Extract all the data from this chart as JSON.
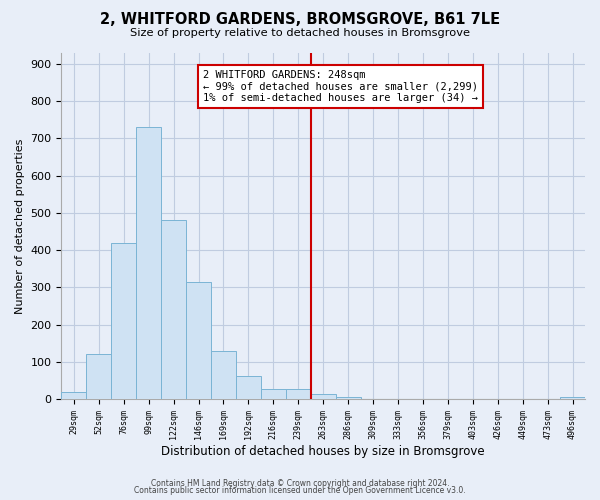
{
  "title": "2, WHITFORD GARDENS, BROMSGROVE, B61 7LE",
  "subtitle": "Size of property relative to detached houses in Bromsgrove",
  "xlabel": "Distribution of detached houses by size in Bromsgrove",
  "ylabel": "Number of detached properties",
  "bin_labels": [
    "29sqm",
    "52sqm",
    "76sqm",
    "99sqm",
    "122sqm",
    "146sqm",
    "169sqm",
    "192sqm",
    "216sqm",
    "239sqm",
    "263sqm",
    "286sqm",
    "309sqm",
    "333sqm",
    "356sqm",
    "379sqm",
    "403sqm",
    "426sqm",
    "449sqm",
    "473sqm",
    "496sqm"
  ],
  "bar_values": [
    20,
    120,
    420,
    730,
    480,
    315,
    130,
    63,
    27,
    27,
    14,
    6,
    0,
    0,
    0,
    0,
    0,
    0,
    0,
    0,
    5
  ],
  "bar_color": "#cfe2f3",
  "bar_edge_color": "#7ab4d4",
  "vline_x": 10.0,
  "vline_color": "#cc0000",
  "annotation_text": "2 WHITFORD GARDENS: 248sqm\n← 99% of detached houses are smaller (2,299)\n1% of semi-detached houses are larger (34) →",
  "annotation_box_color": "#ffffff",
  "annotation_box_edge": "#cc0000",
  "ylim": [
    0,
    930
  ],
  "yticks": [
    0,
    100,
    200,
    300,
    400,
    500,
    600,
    700,
    800,
    900
  ],
  "footer_line1": "Contains HM Land Registry data © Crown copyright and database right 2024.",
  "footer_line2": "Contains public sector information licensed under the Open Government Licence v3.0.",
  "bg_color": "#e8eef8",
  "plot_bg_color": "#e8eef8",
  "grid_color": "#c0cce0"
}
